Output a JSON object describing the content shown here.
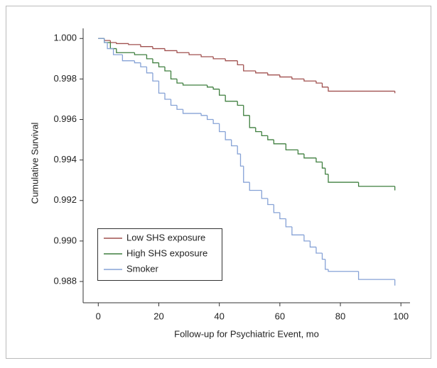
{
  "chart_data": {
    "type": "step",
    "x_label": "Follow-up for Psychiatric Event, mo",
    "y_label": "Cumulative Survival",
    "xlim": [
      -5,
      103
    ],
    "xticks": [
      0,
      20,
      40,
      60,
      80,
      100
    ],
    "ylim": [
      0.98695,
      1.0005
    ],
    "yticks": [
      {
        "value": 1.0,
        "label": "1.000"
      },
      0.998,
      0.996,
      0.994,
      0.992,
      {
        "value": 0.99,
        "label": "0.990"
      },
      0.988
    ],
    "legend": "lower-left",
    "series": [
      {
        "name": "Low SHS exposure",
        "color": "#a0504f",
        "x": [
          0,
          2,
          4,
          6,
          10,
          14,
          18,
          22,
          26,
          30,
          34,
          38,
          42,
          46,
          48,
          52,
          56,
          60,
          64,
          68,
          72,
          74,
          76,
          98
        ],
        "values": [
          1.0,
          0.9999,
          0.9998,
          0.99975,
          0.9997,
          0.9996,
          0.9995,
          0.9994,
          0.9993,
          0.9992,
          0.9991,
          0.999,
          0.9989,
          0.9987,
          0.9984,
          0.9983,
          0.9982,
          0.9981,
          0.998,
          0.9979,
          0.9978,
          0.9976,
          0.9974,
          0.9973
        ]
      },
      {
        "name": "High SHS exposure",
        "color": "#3f7f3f",
        "x": [
          0,
          2,
          4,
          6,
          12,
          16,
          18,
          20,
          22,
          24,
          26,
          28,
          36,
          38,
          40,
          42,
          46,
          48,
          50,
          52,
          54,
          56,
          58,
          62,
          66,
          68,
          72,
          74,
          75,
          76,
          86,
          98
        ],
        "values": [
          1.0,
          0.9998,
          0.9995,
          0.9993,
          0.9992,
          0.999,
          0.9988,
          0.9986,
          0.9984,
          0.998,
          0.9978,
          0.9977,
          0.9976,
          0.9975,
          0.9972,
          0.9969,
          0.9967,
          0.9962,
          0.9956,
          0.9954,
          0.9952,
          0.995,
          0.9948,
          0.9945,
          0.9943,
          0.9941,
          0.9939,
          0.9936,
          0.9933,
          0.9929,
          0.9927,
          0.9925
        ]
      },
      {
        "name": "Smoker",
        "color": "#86a2d6",
        "x": [
          0,
          2,
          3,
          5,
          8,
          12,
          14,
          16,
          18,
          20,
          22,
          24,
          26,
          28,
          34,
          36,
          38,
          40,
          42,
          44,
          46,
          47,
          48,
          50,
          54,
          56,
          58,
          60,
          62,
          64,
          68,
          70,
          72,
          74,
          75,
          76,
          86,
          98
        ],
        "values": [
          1.0,
          0.9998,
          0.9995,
          0.9992,
          0.9989,
          0.9988,
          0.9986,
          0.9983,
          0.9979,
          0.9973,
          0.997,
          0.9967,
          0.9965,
          0.9963,
          0.9962,
          0.996,
          0.9958,
          0.9954,
          0.995,
          0.9947,
          0.9943,
          0.9937,
          0.9929,
          0.9925,
          0.9921,
          0.9918,
          0.9914,
          0.9911,
          0.9907,
          0.9903,
          0.99,
          0.9897,
          0.9894,
          0.9891,
          0.9886,
          0.9885,
          0.9881,
          0.9878
        ]
      }
    ]
  }
}
